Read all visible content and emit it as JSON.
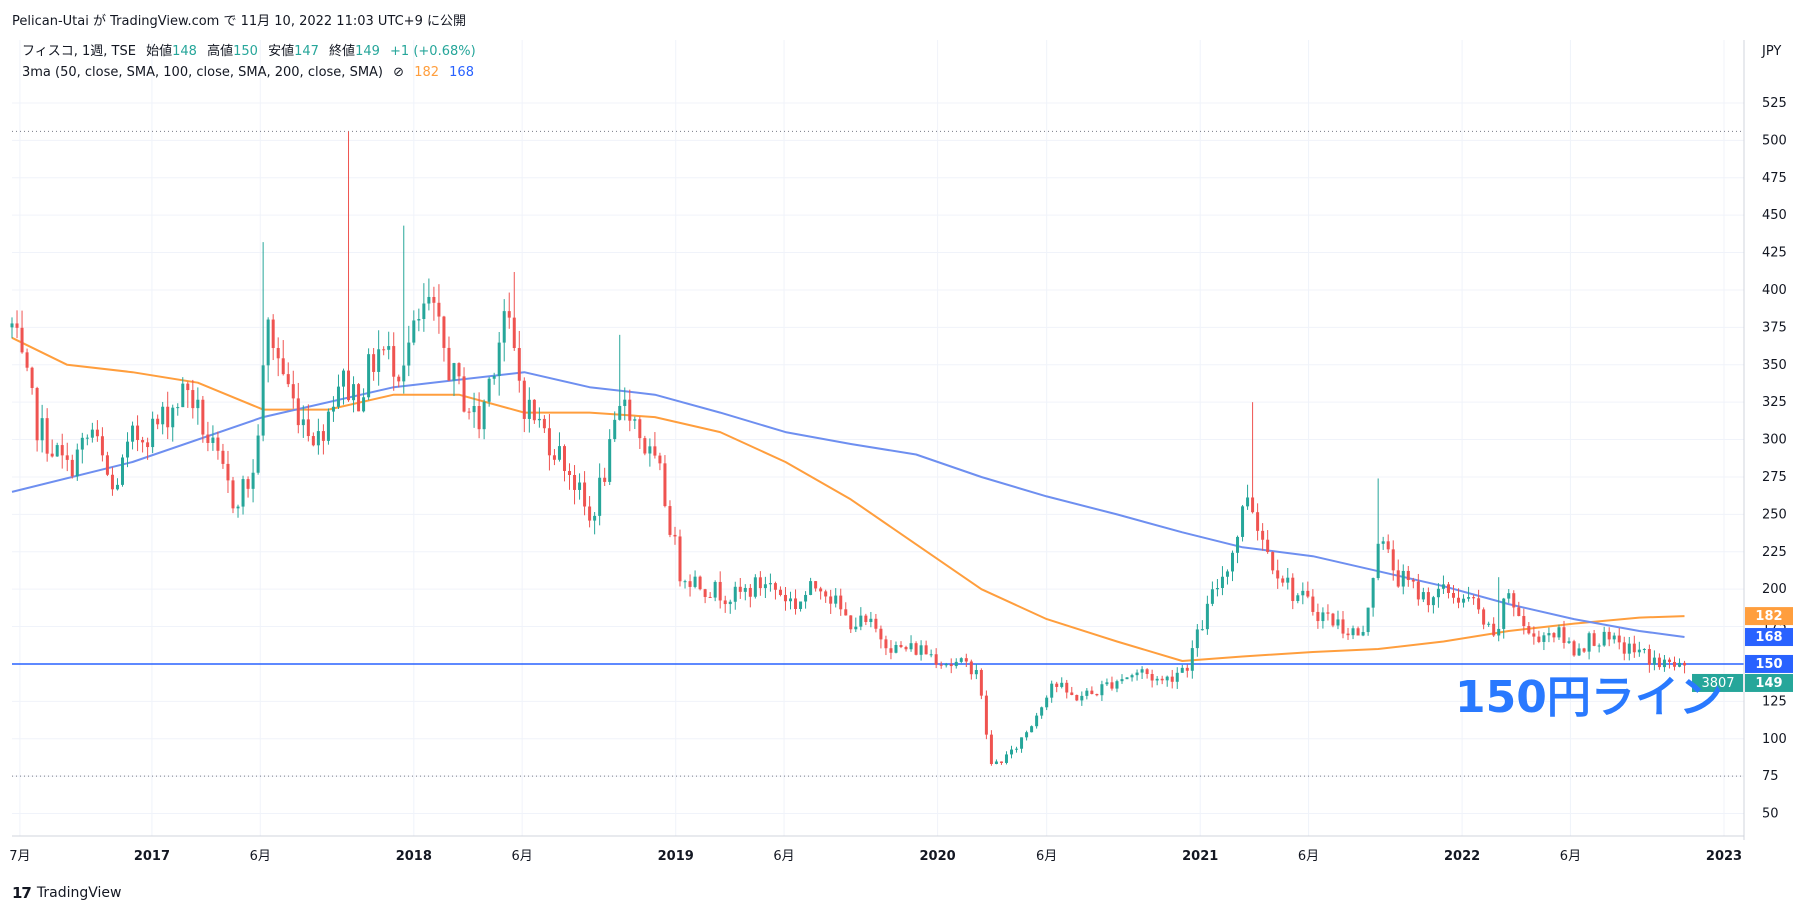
{
  "header": {
    "publish_line": "Pelican-Utai が TradingView.com で 11月 10, 2022 11:03 UTC+9 に公開"
  },
  "legend": {
    "symbol": "フィスコ, 1週, TSE",
    "open_label": "始値",
    "open_value": "148",
    "high_label": "高値",
    "high_value": "150",
    "low_label": "安値",
    "low_value": "147",
    "close_label": "終値",
    "close_value": "149",
    "change": "+1 (+0.68%)",
    "indicator": "3ma (50, close, SMA, 100, close, SMA, 200, close, SMA)",
    "indicator_icon": "⊘",
    "ma_values": [
      "182",
      "168"
    ]
  },
  "annotation": {
    "text": "150円ライン"
  },
  "footer": {
    "logo_text": "TradingView"
  },
  "colors": {
    "up": "#26a69a",
    "down": "#ef5350",
    "ma100": "#ff9e3d",
    "ma200": "#6e8ff0",
    "hline": "#2962ff",
    "annotation": "#2979ff",
    "grid": "#f0f3fa",
    "text": "#131722"
  },
  "chart_data": {
    "type": "candlestick",
    "currency_label": "JPY",
    "x_range": [
      "2016-06-20",
      "2022-11-10"
    ],
    "x_axis_max": "2023-01-01",
    "y_range": [
      35,
      535
    ],
    "y_ticks": [
      50,
      75,
      100,
      125,
      150,
      175,
      200,
      225,
      250,
      275,
      300,
      325,
      350,
      375,
      400,
      425,
      450,
      475,
      500,
      525
    ],
    "x_ticks": [
      {
        "date": "2016-07-01",
        "label": "7月"
      },
      {
        "date": "2017-01-01",
        "label": "2017",
        "bold": true
      },
      {
        "date": "2017-06-01",
        "label": "6月"
      },
      {
        "date": "2018-01-01",
        "label": "2018",
        "bold": true
      },
      {
        "date": "2018-06-01",
        "label": "6月"
      },
      {
        "date": "2019-01-01",
        "label": "2019",
        "bold": true
      },
      {
        "date": "2019-06-01",
        "label": "6月"
      },
      {
        "date": "2020-01-01",
        "label": "2020",
        "bold": true
      },
      {
        "date": "2020-06-01",
        "label": "6月"
      },
      {
        "date": "2021-01-01",
        "label": "2021",
        "bold": true
      },
      {
        "date": "2021-06-01",
        "label": "6月"
      },
      {
        "date": "2022-01-01",
        "label": "2022",
        "bold": true
      },
      {
        "date": "2022-06-01",
        "label": "6月"
      },
      {
        "date": "2023-01-01",
        "label": "2023",
        "bold": true
      }
    ],
    "dotted_levels": [
      506,
      75
    ],
    "horizontal_line": 150,
    "price_labels": [
      {
        "value": 182,
        "text": "182",
        "color": "#ff9e3d"
      },
      {
        "value": 168,
        "text": "168",
        "color": "#2962ff"
      },
      {
        "value": 150,
        "text": "150",
        "color": "#2962ff"
      },
      {
        "value": 149,
        "text": "149",
        "color": "#26a69a"
      }
    ],
    "countdown_label": "3807",
    "price_path": [
      [
        "2016-06-20",
        375
      ],
      [
        "2016-07-25",
        310
      ],
      [
        "2016-09-05",
        280
      ],
      [
        "2016-10-10",
        305
      ],
      [
        "2016-11-07",
        265
      ],
      [
        "2016-12-05",
        300
      ],
      [
        "2017-01-09",
        310
      ],
      [
        "2017-02-20",
        335
      ],
      [
        "2017-03-20",
        300
      ],
      [
        "2017-04-24",
        260
      ],
      [
        "2017-05-22",
        275
      ],
      [
        "2017-06-12",
        375
      ],
      [
        "2017-07-17",
        325
      ],
      [
        "2017-08-21",
        300
      ],
      [
        "2017-09-18",
        340
      ],
      [
        "2017-10-16",
        330
      ],
      [
        "2017-11-13",
        360
      ],
      [
        "2017-12-11",
        350
      ],
      [
        "2018-01-22",
        390
      ],
      [
        "2018-02-26",
        340
      ],
      [
        "2018-04-02",
        310
      ],
      [
        "2018-05-07",
        385
      ],
      [
        "2018-06-04",
        325
      ],
      [
        "2018-07-09",
        300
      ],
      [
        "2018-08-06",
        280
      ],
      [
        "2018-09-03",
        245
      ],
      [
        "2018-10-01",
        290
      ],
      [
        "2018-10-22",
        330
      ],
      [
        "2018-11-19",
        295
      ],
      [
        "2018-12-10",
        275
      ],
      [
        "2019-01-07",
        212
      ],
      [
        "2019-02-18",
        200
      ],
      [
        "2019-03-25",
        195
      ],
      [
        "2019-05-06",
        205
      ],
      [
        "2019-06-17",
        190
      ],
      [
        "2019-07-22",
        205
      ],
      [
        "2019-08-26",
        180
      ],
      [
        "2019-09-30",
        175
      ],
      [
        "2019-11-04",
        160
      ],
      [
        "2019-12-09",
        160
      ],
      [
        "2020-01-20",
        150
      ],
      [
        "2020-02-24",
        148
      ],
      [
        "2020-03-16",
        82
      ],
      [
        "2020-04-13",
        90
      ],
      [
        "2020-05-11",
        110
      ],
      [
        "2020-06-08",
        138
      ],
      [
        "2020-07-06",
        128
      ],
      [
        "2020-08-03",
        130
      ],
      [
        "2020-09-07",
        140
      ],
      [
        "2020-10-12",
        145
      ],
      [
        "2020-11-09",
        138
      ],
      [
        "2020-12-14",
        150
      ],
      [
        "2021-01-18",
        195
      ],
      [
        "2021-02-15",
        225
      ],
      [
        "2021-03-08",
        265
      ],
      [
        "2021-04-05",
        225
      ],
      [
        "2021-05-10",
        198
      ],
      [
        "2021-06-14",
        185
      ],
      [
        "2021-07-19",
        175
      ],
      [
        "2021-08-16",
        168
      ],
      [
        "2021-09-06",
        235
      ],
      [
        "2021-10-04",
        208
      ],
      [
        "2021-11-08",
        195
      ],
      [
        "2021-12-13",
        198
      ],
      [
        "2022-01-17",
        190
      ],
      [
        "2022-02-14",
        165
      ],
      [
        "2022-03-07",
        198
      ],
      [
        "2022-04-04",
        168
      ],
      [
        "2022-05-09",
        172
      ],
      [
        "2022-06-06",
        160
      ],
      [
        "2022-07-04",
        168
      ],
      [
        "2022-08-08",
        162
      ],
      [
        "2022-09-05",
        158
      ],
      [
        "2022-10-03",
        150
      ],
      [
        "2022-11-07",
        149
      ]
    ],
    "spikes": [
      {
        "date": "2017-06-05",
        "high": 432
      },
      {
        "date": "2017-10-02",
        "high": 506
      },
      {
        "date": "2017-12-18",
        "high": 443
      },
      {
        "date": "2018-05-21",
        "high": 412
      },
      {
        "date": "2018-10-15",
        "high": 370
      },
      {
        "date": "2021-03-15",
        "high": 325
      },
      {
        "date": "2021-09-06",
        "high": 274
      },
      {
        "date": "2022-02-21",
        "high": 208
      }
    ],
    "series": [
      {
        "name": "",
        "color": "#ff9e3d",
        "points": [
          [
            "2016-06-20",
            368
          ],
          [
            "2016-09-05",
            350
          ],
          [
            "2016-12-05",
            345
          ],
          [
            "2017-03-06",
            338
          ],
          [
            "2017-06-05",
            320
          ],
          [
            "2017-09-04",
            320
          ],
          [
            "2017-12-04",
            330
          ],
          [
            "2018-03-05",
            330
          ],
          [
            "2018-06-04",
            318
          ],
          [
            "2018-09-03",
            318
          ],
          [
            "2018-12-03",
            315
          ],
          [
            "2019-03-04",
            305
          ],
          [
            "2019-06-03",
            285
          ],
          [
            "2019-09-02",
            260
          ],
          [
            "2019-12-02",
            230
          ],
          [
            "2020-03-02",
            200
          ],
          [
            "2020-06-01",
            180
          ],
          [
            "2020-09-07",
            165
          ],
          [
            "2020-12-07",
            152
          ],
          [
            "2021-03-01",
            155
          ],
          [
            "2021-06-07",
            158
          ],
          [
            "2021-09-06",
            160
          ],
          [
            "2021-12-06",
            165
          ],
          [
            "2022-03-07",
            172
          ],
          [
            "2022-06-06",
            177
          ],
          [
            "2022-09-05",
            181
          ],
          [
            "2022-11-07",
            182
          ]
        ]
      },
      {
        "name": "",
        "color": "#6e8ff0",
        "points": [
          [
            "2016-06-20",
            265
          ],
          [
            "2016-12-05",
            285
          ],
          [
            "2017-06-05",
            315
          ],
          [
            "2017-12-04",
            335
          ],
          [
            "2018-06-04",
            345
          ],
          [
            "2018-09-03",
            335
          ],
          [
            "2018-12-03",
            330
          ],
          [
            "2019-03-04",
            318
          ],
          [
            "2019-06-03",
            305
          ],
          [
            "2019-09-02",
            297
          ],
          [
            "2019-12-02",
            290
          ],
          [
            "2020-03-02",
            275
          ],
          [
            "2020-06-01",
            262
          ],
          [
            "2020-09-07",
            250
          ],
          [
            "2020-12-07",
            238
          ],
          [
            "2021-03-01",
            228
          ],
          [
            "2021-06-07",
            222
          ],
          [
            "2021-09-06",
            212
          ],
          [
            "2021-12-06",
            202
          ],
          [
            "2022-03-07",
            190
          ],
          [
            "2022-06-06",
            180
          ],
          [
            "2022-09-05",
            172
          ],
          [
            "2022-11-07",
            168
          ]
        ]
      }
    ]
  }
}
